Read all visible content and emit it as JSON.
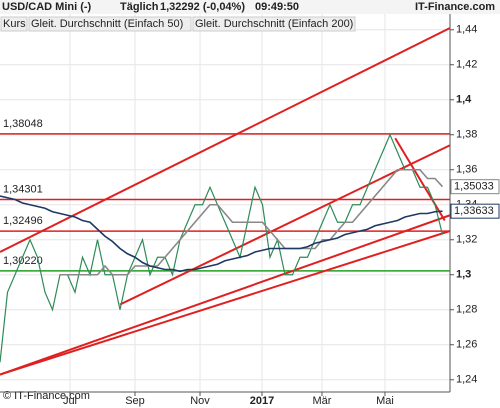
{
  "chart_data": {
    "type": "line",
    "header": [
      "USD/CAD Mini (-)",
      "Täglich",
      "1,32292 (-0,04%)",
      "09:49:50",
      "IT-Finance.com"
    ],
    "watermark": "© IT-Finance.com",
    "x": [
      0,
      1,
      2,
      3,
      4,
      5,
      6,
      7,
      8,
      9,
      10,
      11,
      12,
      13,
      14,
      15,
      16,
      17,
      18,
      19,
      20,
      21,
      22,
      23,
      24,
      25,
      26,
      27,
      28,
      29,
      30,
      31,
      32,
      33,
      34,
      35,
      36,
      37,
      38,
      39,
      40,
      41,
      42,
      43,
      44,
      45,
      46,
      47,
      48,
      49,
      50,
      51,
      52,
      53,
      54,
      55,
      56,
      57,
      58,
      59
    ],
    "xlim": [
      0,
      60
    ],
    "xticks": [
      {
        "value": 9.33,
        "label": "Jul"
      },
      {
        "value": 18,
        "label": "Sep"
      },
      {
        "value": 26.67,
        "label": "Nov"
      },
      {
        "value": 34.93,
        "label": "2017"
      },
      {
        "value": 42.93,
        "label": "Mär"
      },
      {
        "value": 51.33,
        "label": "Mai"
      }
    ],
    "ylim": [
      1.233,
      1.449
    ],
    "yticks": [
      {
        "value": 1.44,
        "label": "1,44"
      },
      {
        "value": 1.42,
        "label": "1,42"
      },
      {
        "value": 1.4,
        "label": "1,4"
      },
      {
        "value": 1.38,
        "label": "1,38"
      },
      {
        "value": 1.36,
        "label": "1,36"
      },
      {
        "value": 1.34,
        "label": "1,34"
      },
      {
        "value": 1.32,
        "label": "1,32"
      },
      {
        "value": 1.3,
        "label": "1,3"
      },
      {
        "value": 1.28,
        "label": "1,28"
      },
      {
        "value": 1.26,
        "label": "1,26"
      },
      {
        "value": 1.24,
        "label": "1,24"
      }
    ],
    "grid": true,
    "series": [
      {
        "name": "Kurs",
        "color": "#2e8b57",
        "values": [
          1.25,
          1.29,
          1.3,
          1.31,
          1.32,
          1.31,
          1.29,
          1.28,
          1.3,
          1.3,
          1.29,
          1.31,
          1.3,
          1.32,
          1.3,
          1.3,
          1.28,
          1.3,
          1.31,
          1.32,
          1.3,
          1.31,
          1.31,
          1.3,
          1.32,
          1.33,
          1.34,
          1.34,
          1.35,
          1.34,
          1.33,
          1.32,
          1.31,
          1.33,
          1.35,
          1.34,
          1.31,
          1.32,
          1.3,
          1.3,
          1.31,
          1.31,
          1.32,
          1.33,
          1.34,
          1.33,
          1.33,
          1.34,
          1.34,
          1.35,
          1.36,
          1.37,
          1.38,
          1.37,
          1.36,
          1.36,
          1.35,
          1.35,
          1.34,
          1.32292
        ]
      },
      {
        "name": "Gleit. Durchschnitt (Einfach 50)",
        "color": "#888888",
        "values": [
          null,
          null,
          null,
          null,
          null,
          null,
          null,
          null,
          1.3,
          1.3,
          1.3,
          1.3,
          1.3,
          1.3,
          1.305,
          1.3,
          1.3,
          1.3,
          1.305,
          1.305,
          1.305,
          1.305,
          1.31,
          1.315,
          1.32,
          1.325,
          1.33,
          1.335,
          1.34,
          1.34,
          1.335,
          1.33,
          1.33,
          1.33,
          1.33,
          1.33,
          1.325,
          1.32,
          1.315,
          1.315,
          1.315,
          1.315,
          1.315,
          1.32,
          1.32,
          1.325,
          1.33,
          1.33,
          1.335,
          1.34,
          1.345,
          1.35,
          1.355,
          1.36,
          1.36,
          1.36,
          1.36,
          1.355,
          1.355,
          1.35033
        ],
        "value_labels": {
          "59": "1,35033"
        }
      },
      {
        "name": "Gleit. Durchschnitt (Einfach 200)",
        "color": "#1f3864",
        "values": [
          1.345,
          1.344,
          1.343,
          1.341,
          1.34,
          1.339,
          1.338,
          1.336,
          1.335,
          1.334,
          1.333,
          1.331,
          1.33,
          1.326,
          1.322,
          1.319,
          1.315,
          1.312,
          1.31,
          1.307,
          1.305,
          1.304,
          1.303,
          1.303,
          1.302,
          1.303,
          1.303,
          1.304,
          1.305,
          1.306,
          1.308,
          1.309,
          1.31,
          1.311,
          1.313,
          1.314,
          1.315,
          1.315,
          1.315,
          1.315,
          1.315,
          1.316,
          1.318,
          1.319,
          1.32,
          1.321,
          1.323,
          1.324,
          1.325,
          1.326,
          1.328,
          1.329,
          1.33,
          1.331,
          1.333,
          1.334,
          1.335,
          1.335,
          1.336,
          1.33633
        ],
        "value_labels": {
          "59": "1,33633"
        }
      }
    ],
    "levels": [
      {
        "value": 1.38048,
        "label": "1,38048",
        "color": "#e02020"
      },
      {
        "value": 1.34301,
        "label": "1,34301",
        "color": "#e02020"
      },
      {
        "value": 1.32496,
        "label": "1,32496",
        "color": "#e02020"
      },
      {
        "value": 1.3022,
        "label": "1,30220",
        "color": "#20a020"
      }
    ],
    "trendlines": [
      {
        "x": [
          0,
          60
        ],
        "y": [
          1.313,
          1.441
        ],
        "color": "#e02020"
      },
      {
        "x": [
          16,
          60
        ],
        "y": [
          1.283,
          1.374
        ],
        "color": "#e02020"
      },
      {
        "x": [
          0,
          60
        ],
        "y": [
          1.243,
          1.334
        ],
        "color": "#e02020"
      },
      {
        "x": [
          0,
          60
        ],
        "y": [
          1.243,
          1.325
        ],
        "color": "#e02020"
      },
      {
        "x": [
          52.7,
          59.3
        ],
        "y": [
          1.378,
          1.331
        ],
        "color": "#e02020"
      }
    ]
  }
}
